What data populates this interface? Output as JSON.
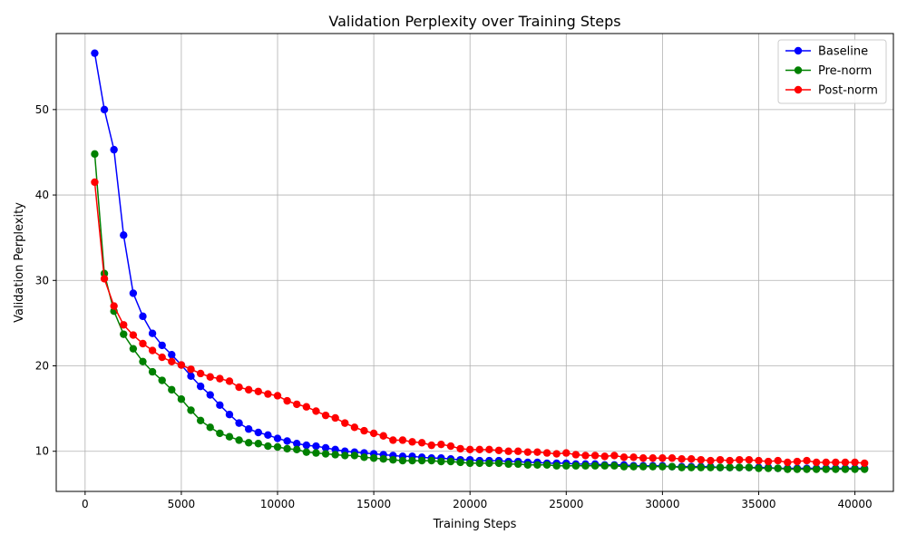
{
  "chart_data": {
    "type": "line",
    "title": "Validation Perplexity over Training Steps",
    "xlabel": "Training Steps",
    "ylabel": "Validation Perplexity",
    "xlim": [
      -1500,
      42000
    ],
    "ylim": [
      5.3,
      58.9
    ],
    "xticks": [
      0,
      5000,
      10000,
      15000,
      20000,
      25000,
      30000,
      35000,
      40000
    ],
    "yticks": [
      10,
      20,
      30,
      40,
      50
    ],
    "grid": true,
    "legend_position": "top-right",
    "x": [
      500,
      1000,
      1500,
      2000,
      2500,
      3000,
      3500,
      4000,
      4500,
      5000,
      5500,
      6000,
      6500,
      7000,
      7500,
      8000,
      8500,
      9000,
      9500,
      10000,
      10500,
      11000,
      11500,
      12000,
      12500,
      13000,
      13500,
      14000,
      14500,
      15000,
      15500,
      16000,
      16500,
      17000,
      17500,
      18000,
      18500,
      19000,
      19500,
      20000,
      20500,
      21000,
      21500,
      22000,
      22500,
      23000,
      23500,
      24000,
      24500,
      25000,
      25500,
      26000,
      26500,
      27000,
      27500,
      28000,
      28500,
      29000,
      29500,
      30000,
      30500,
      31000,
      31500,
      32000,
      32500,
      33000,
      33500,
      34000,
      34500,
      35000,
      35500,
      36000,
      36500,
      37000,
      37500,
      38000,
      38500,
      39000,
      39500,
      40000,
      40500
    ],
    "series": [
      {
        "name": "Baseline",
        "color": "#0000ff",
        "values": [
          56.6,
          50.0,
          45.3,
          35.3,
          28.5,
          25.8,
          23.8,
          22.4,
          21.3,
          20.1,
          18.8,
          17.6,
          16.6,
          15.4,
          14.3,
          13.3,
          12.6,
          12.2,
          11.9,
          11.5,
          11.2,
          10.9,
          10.7,
          10.6,
          10.4,
          10.2,
          10.0,
          9.9,
          9.8,
          9.7,
          9.6,
          9.5,
          9.4,
          9.4,
          9.3,
          9.2,
          9.2,
          9.1,
          9.0,
          9.0,
          8.9,
          8.9,
          8.9,
          8.8,
          8.8,
          8.7,
          8.7,
          8.6,
          8.6,
          8.6,
          8.5,
          8.5,
          8.5,
          8.4,
          8.4,
          8.4,
          8.3,
          8.3,
          8.3,
          8.3,
          8.2,
          8.2,
          8.2,
          8.2,
          8.2,
          8.1,
          8.1,
          8.1,
          8.1,
          8.1,
          8.1,
          8.0,
          8.0,
          8.0,
          8.0,
          8.0,
          8.0,
          8.0,
          8.0,
          8.0,
          8.0
        ]
      },
      {
        "name": "Pre-norm",
        "color": "#008000",
        "values": [
          44.8,
          30.8,
          26.4,
          23.7,
          22.0,
          20.5,
          19.3,
          18.3,
          17.2,
          16.1,
          14.8,
          13.6,
          12.8,
          12.1,
          11.7,
          11.3,
          11.0,
          10.9,
          10.6,
          10.5,
          10.3,
          10.2,
          9.9,
          9.8,
          9.7,
          9.6,
          9.5,
          9.5,
          9.3,
          9.2,
          9.1,
          9.0,
          8.9,
          8.9,
          8.9,
          8.9,
          8.8,
          8.8,
          8.7,
          8.6,
          8.6,
          8.6,
          8.6,
          8.5,
          8.5,
          8.4,
          8.4,
          8.4,
          8.3,
          8.3,
          8.3,
          8.3,
          8.3,
          8.3,
          8.3,
          8.2,
          8.2,
          8.2,
          8.2,
          8.2,
          8.2,
          8.1,
          8.1,
          8.1,
          8.1,
          8.1,
          8.1,
          8.1,
          8.1,
          8.0,
          8.0,
          8.0,
          7.9,
          7.9,
          7.9,
          7.9,
          7.9,
          7.9,
          7.9,
          7.9,
          7.9
        ]
      },
      {
        "name": "Post-norm",
        "color": "#ff0000",
        "values": [
          41.5,
          30.2,
          27.0,
          24.8,
          23.6,
          22.6,
          21.8,
          21.0,
          20.5,
          20.1,
          19.6,
          19.1,
          18.7,
          18.5,
          18.2,
          17.5,
          17.2,
          17.0,
          16.7,
          16.5,
          15.9,
          15.5,
          15.2,
          14.7,
          14.2,
          13.9,
          13.3,
          12.8,
          12.4,
          12.1,
          11.8,
          11.3,
          11.3,
          11.1,
          11.0,
          10.7,
          10.8,
          10.6,
          10.3,
          10.2,
          10.2,
          10.2,
          10.1,
          10.0,
          10.0,
          9.9,
          9.9,
          9.8,
          9.7,
          9.8,
          9.6,
          9.5,
          9.5,
          9.4,
          9.5,
          9.3,
          9.3,
          9.2,
          9.2,
          9.2,
          9.2,
          9.1,
          9.1,
          9.0,
          8.9,
          9.0,
          8.9,
          9.0,
          9.0,
          8.9,
          8.8,
          8.9,
          8.7,
          8.8,
          8.9,
          8.7,
          8.7,
          8.7,
          8.7,
          8.7,
          8.6
        ]
      }
    ]
  }
}
